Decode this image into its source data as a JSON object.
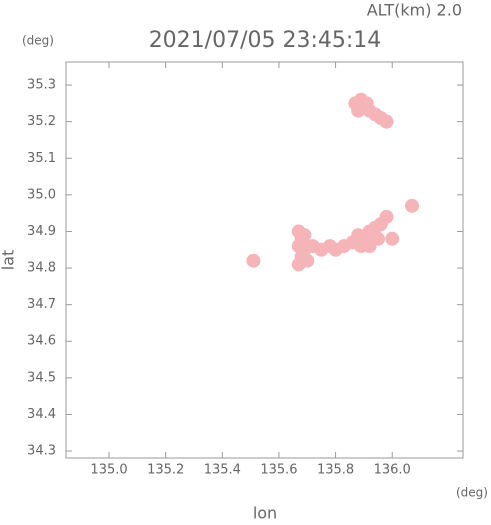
{
  "chart_data": {
    "type": "scatter",
    "title": "2021/07/05 23:45:14",
    "subtitle": "ALT(km) 2.0",
    "x_label": "lon",
    "y_label": "lat",
    "x_unit": "(deg)",
    "y_unit": "(deg)",
    "color": "#f5b5b8",
    "x": [
      135.87,
      135.89,
      135.9,
      135.92,
      135.94,
      135.96,
      135.98,
      135.88,
      135.91,
      135.67,
      135.68,
      135.67,
      135.69,
      135.68,
      135.67,
      135.7,
      135.69,
      135.72,
      135.75,
      135.78,
      135.8,
      135.83,
      135.86,
      135.88,
      135.9,
      135.92,
      135.94,
      135.96,
      135.98,
      135.95,
      135.92,
      135.89,
      136.0,
      136.07,
      135.51
    ],
    "values": [
      35.25,
      35.26,
      35.24,
      35.23,
      35.22,
      35.21,
      35.2,
      35.23,
      35.25,
      34.9,
      34.88,
      34.86,
      34.85,
      34.83,
      34.81,
      34.82,
      34.89,
      34.86,
      34.85,
      34.86,
      34.85,
      34.86,
      34.87,
      34.89,
      34.88,
      34.9,
      34.91,
      34.92,
      34.94,
      34.88,
      34.86,
      34.86,
      34.88,
      34.97,
      34.82
    ],
    "xlim": [
      134.848,
      136.25
    ],
    "ylim": [
      34.281,
      35.363
    ],
    "xticks": [
      {
        "value": 135.0,
        "label": "135.0"
      },
      135.2,
      135.4,
      135.6,
      135.8,
      {
        "value": 136.0,
        "label": "136.0"
      }
    ],
    "yticks": [
      35.3,
      35.2,
      35.1,
      {
        "value": 35.0,
        "label": "35.0"
      },
      34.9,
      34.8,
      34.7,
      34.6,
      34.5,
      34.4,
      34.3
    ]
  }
}
